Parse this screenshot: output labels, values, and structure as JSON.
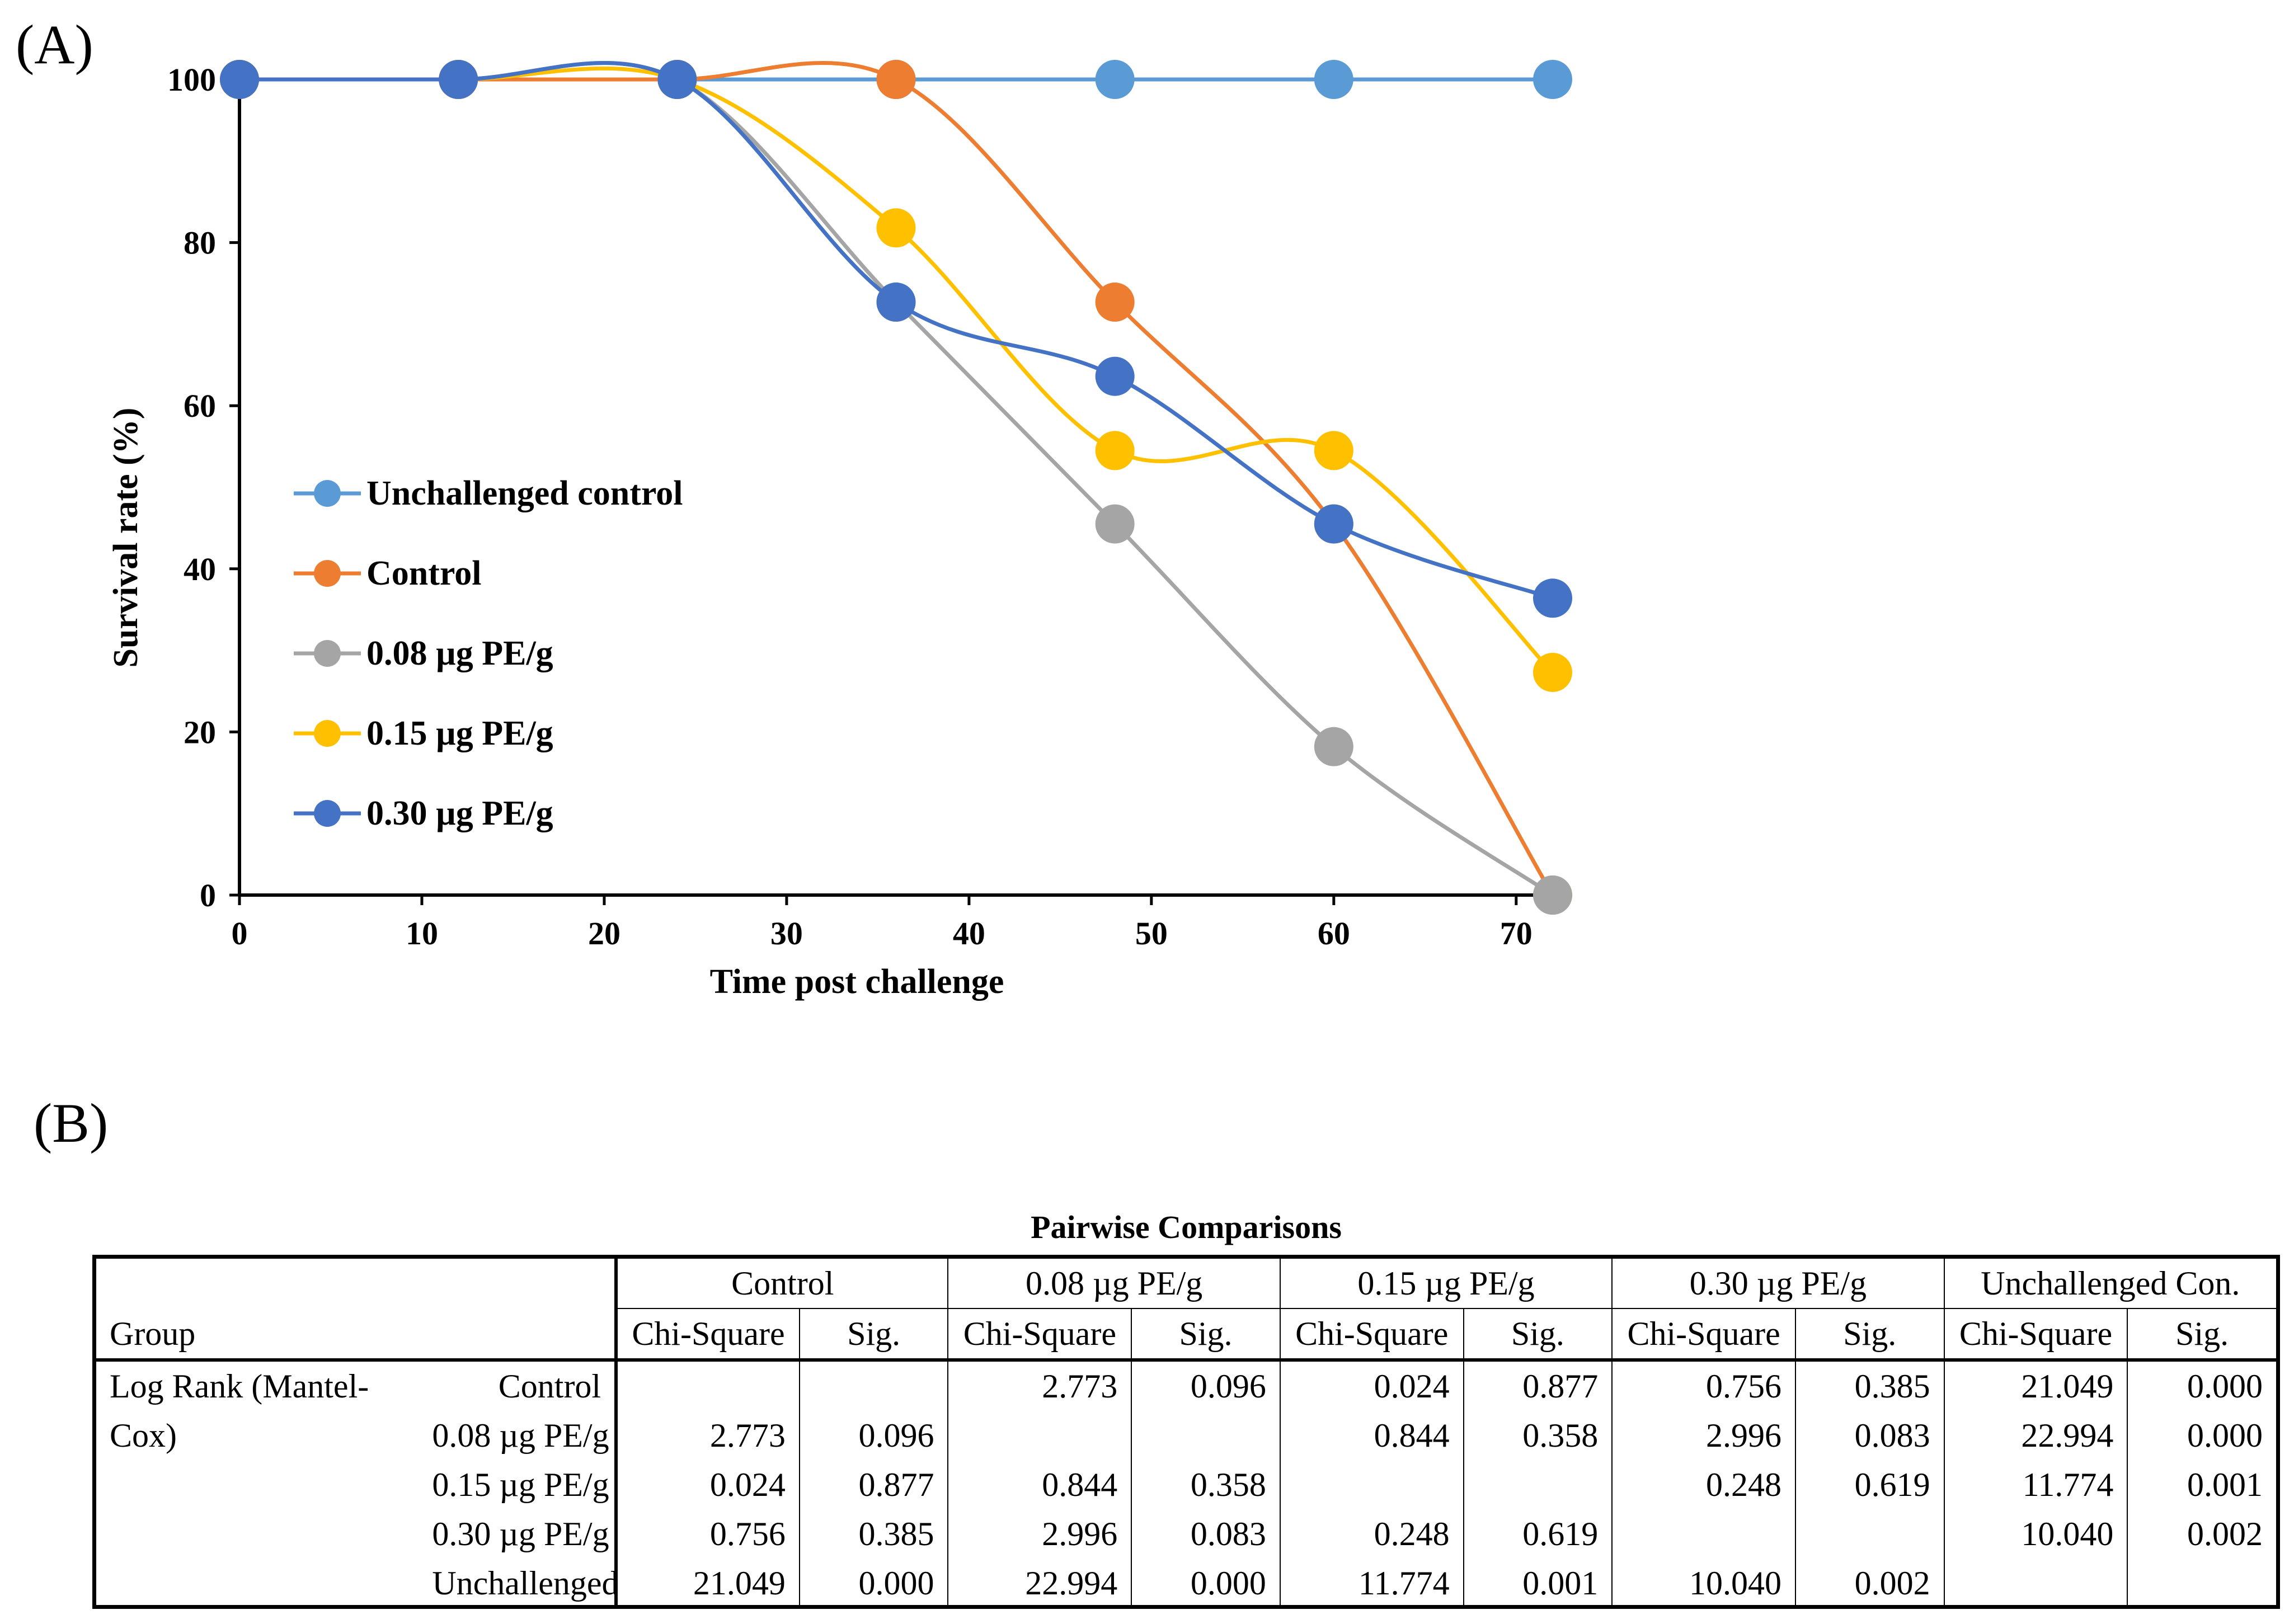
{
  "panel_a_label": "(A)",
  "panel_b_label": "(B)",
  "chart_data": {
    "type": "line",
    "xlabel": "Time post challenge",
    "ylabel": "Survival rate (%)",
    "xlim": [
      0,
      72
    ],
    "ylim": [
      0,
      100
    ],
    "xticks": [
      0,
      10,
      20,
      30,
      40,
      50,
      60,
      70
    ],
    "yticks": [
      0,
      20,
      40,
      60,
      80,
      100
    ],
    "legend_position": "center-left",
    "series": [
      {
        "name": "Unchallenged control",
        "color": "#5B9BD5",
        "x": [
          0,
          12,
          24,
          36,
          48,
          60,
          72
        ],
        "values": [
          100,
          100,
          100,
          100,
          100,
          100,
          100
        ]
      },
      {
        "name": "Control",
        "color": "#ED7D31",
        "x": [
          0,
          12,
          24,
          36,
          48,
          60,
          72
        ],
        "values": [
          100,
          100,
          100,
          100,
          72.7,
          45.5,
          0
        ]
      },
      {
        "name": "0.08 µg PE/g",
        "color": "#A5A5A5",
        "x": [
          0,
          12,
          24,
          36,
          48,
          60,
          72
        ],
        "values": [
          100,
          100,
          100,
          72.7,
          45.5,
          18.2,
          0
        ]
      },
      {
        "name": "0.15 µg PE/g",
        "color": "#FFC000",
        "x": [
          0,
          12,
          24,
          36,
          48,
          60,
          72
        ],
        "values": [
          100,
          100,
          100,
          81.8,
          54.5,
          54.5,
          27.3
        ]
      },
      {
        "name": "0.30 µg PE/g",
        "color": "#4472C4",
        "x": [
          0,
          12,
          24,
          36,
          48,
          60,
          72
        ],
        "values": [
          100,
          100,
          100,
          72.7,
          63.6,
          45.5,
          36.4
        ]
      }
    ]
  },
  "table": {
    "title": "Pairwise Comparisons",
    "group_header": "Group",
    "column_groups": [
      "Control",
      "0.08 µg PE/g",
      "0.15 µg PE/g",
      "0.30 µg PE/g",
      "Unchallenged Con."
    ],
    "stat_headers": {
      "chi": "Chi-Square",
      "sig": "Sig."
    },
    "method": "Log Rank (Mantel-Cox)",
    "method_line1": "Log Rank (Mantel-",
    "method_line2": "Cox)",
    "rows": [
      {
        "label": "Control",
        "cells": [
          "",
          "",
          "2.773",
          "0.096",
          "0.024",
          "0.877",
          "0.756",
          "0.385",
          "21.049",
          "0.000"
        ]
      },
      {
        "label": "0.08 µg PE/g",
        "cells": [
          "2.773",
          "0.096",
          "",
          "",
          "0.844",
          "0.358",
          "2.996",
          "0.083",
          "22.994",
          "0.000"
        ]
      },
      {
        "label": "0.15 µg PE/g",
        "cells": [
          "0.024",
          "0.877",
          "0.844",
          "0.358",
          "",
          "",
          "0.248",
          "0.619",
          "11.774",
          "0.001"
        ]
      },
      {
        "label": "0.30 µg PE/g",
        "cells": [
          "0.756",
          "0.385",
          "2.996",
          "0.083",
          "0.248",
          "0.619",
          "",
          "",
          "10.040",
          "0.002"
        ]
      },
      {
        "label": "Unchallenged",
        "cells": [
          "21.049",
          "0.000",
          "22.994",
          "0.000",
          "11.774",
          "0.001",
          "10.040",
          "0.002",
          "",
          ""
        ]
      }
    ]
  }
}
